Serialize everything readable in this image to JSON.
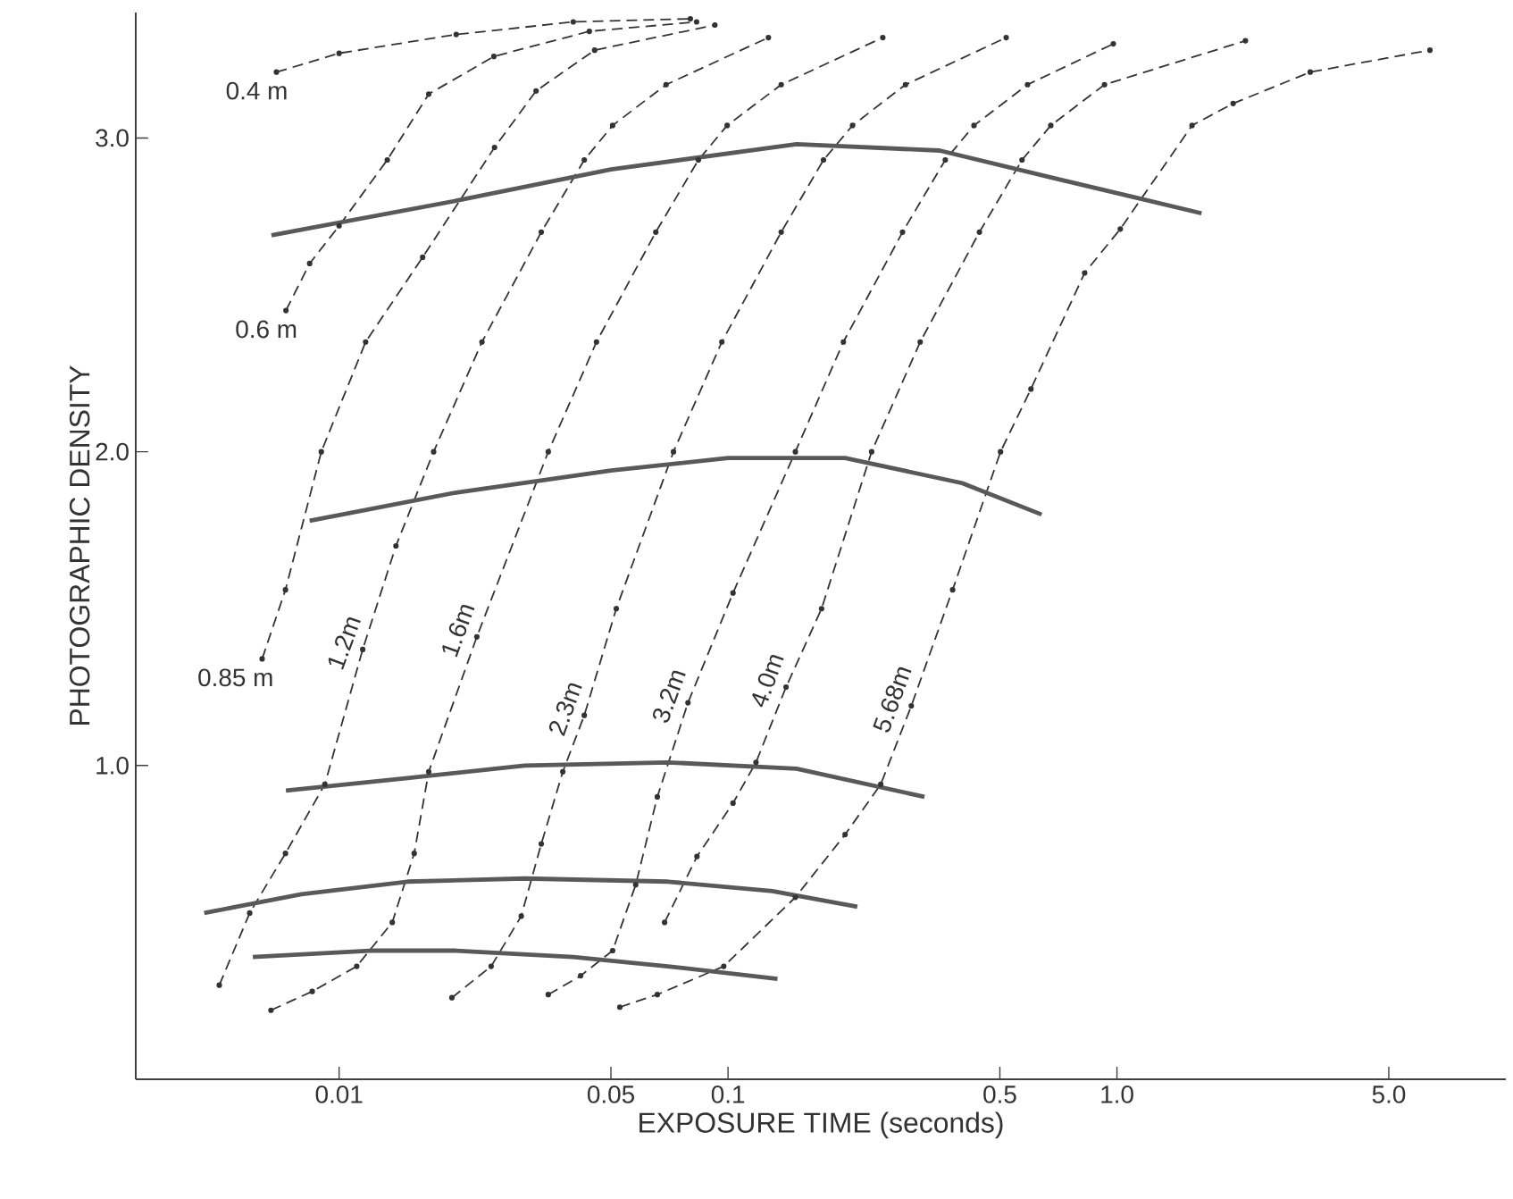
{
  "chart_data": {
    "type": "line",
    "xlabel": "EXPOSURE  TIME (seconds)",
    "ylabel": "PHOTOGRAPHIC DENSITY",
    "log": "x",
    "grid": false,
    "xlim": [
      0.003,
      10
    ],
    "ylim": [
      0,
      3.4
    ],
    "xticks": [
      0.01,
      0.05,
      0.1,
      0.5,
      {
        "value": 1,
        "label": "1.0"
      },
      {
        "value": 5,
        "label": "5.0"
      }
    ],
    "yticks": [
      {
        "value": 1,
        "label": "1.0"
      },
      {
        "value": 2,
        "label": "2.0"
      },
      {
        "value": 3,
        "label": "3.0"
      }
    ],
    "series": [
      {
        "name": "0.4 m",
        "color": "#333333",
        "line_style": "dashed",
        "marker": "circle",
        "x": [
          0.0069,
          0.01,
          0.02,
          0.04,
          0.08
        ],
        "values": [
          3.21,
          3.27,
          3.33,
          3.37,
          3.38
        ]
      },
      {
        "name": "0.6 m",
        "color": "#333333",
        "line_style": "dashed",
        "marker": "circle",
        "x": [
          0.0073,
          0.0084,
          0.01,
          0.0133,
          0.017,
          0.025,
          0.044,
          0.083
        ],
        "values": [
          2.45,
          2.6,
          2.72,
          2.93,
          3.14,
          3.26,
          3.34,
          3.37
        ]
      },
      {
        "name": "0.85 m",
        "color": "#333333",
        "line_style": "dashed",
        "marker": "circle",
        "x": [
          0.00634,
          0.00728,
          0.009,
          0.0117,
          0.0164,
          0.0251,
          0.0321,
          0.0454,
          0.0925
        ],
        "values": [
          1.34,
          1.56,
          2.0,
          2.35,
          2.62,
          2.97,
          3.15,
          3.28,
          3.36
        ]
      },
      {
        "name": "1.2m",
        "color": "#333333",
        "line_style": "dashed",
        "marker": "circle",
        "x": [
          0.00492,
          0.00589,
          0.00728,
          0.00919,
          0.0115,
          0.014,
          0.0175,
          0.0233,
          0.0331,
          0.0427,
          0.0505,
          0.0693,
          0.127
        ],
        "values": [
          0.3,
          0.53,
          0.72,
          0.94,
          1.37,
          1.7,
          2.0,
          2.35,
          2.7,
          2.93,
          3.04,
          3.17,
          3.32
        ]
      },
      {
        "name": "1.6m",
        "color": "#333333",
        "line_style": "dashed",
        "marker": "circle",
        "x": [
          0.00668,
          0.00853,
          0.0111,
          0.0137,
          0.0156,
          0.017,
          0.0226,
          0.0345,
          0.0459,
          0.0652,
          0.0839,
          0.0995,
          0.137,
          0.25
        ],
        "values": [
          0.22,
          0.28,
          0.36,
          0.5,
          0.72,
          0.98,
          1.41,
          2.0,
          2.35,
          2.7,
          2.93,
          3.04,
          3.17,
          3.32
        ]
      },
      {
        "name": "2.3m",
        "color": "#333333",
        "line_style": "dashed",
        "marker": "circle",
        "x": [
          0.0195,
          0.0246,
          0.0294,
          0.0331,
          0.0376,
          0.0427,
          0.0516,
          0.0724,
          0.0964,
          0.137,
          0.176,
          0.209,
          0.286,
          0.519
        ],
        "values": [
          0.26,
          0.36,
          0.52,
          0.75,
          0.98,
          1.16,
          1.5,
          2.0,
          2.35,
          2.7,
          2.93,
          3.04,
          3.17,
          3.32
        ]
      },
      {
        "name": "3.2m",
        "color": "#333333",
        "line_style": "dashed",
        "marker": "circle",
        "x": [
          0.0345,
          0.0418,
          0.0505,
          0.0579,
          0.0658,
          0.0789,
          0.103,
          0.149,
          0.198,
          0.281,
          0.362,
          0.429,
          0.589,
          0.979
        ],
        "values": [
          0.27,
          0.33,
          0.41,
          0.62,
          0.9,
          1.2,
          1.55,
          2.0,
          2.35,
          2.7,
          2.93,
          3.04,
          3.17,
          3.3
        ]
      },
      {
        "name": "4.0m",
        "color": "#333333",
        "line_style": "dashed",
        "marker": "circle",
        "x": [
          0.0687,
          0.0832,
          0.103,
          0.118,
          0.141,
          0.174,
          0.234,
          0.312,
          0.443,
          0.57,
          0.676,
          0.929,
          2.14
        ],
        "values": [
          0.5,
          0.71,
          0.88,
          1.01,
          1.25,
          1.5,
          2.0,
          2.35,
          2.7,
          2.93,
          3.04,
          3.17,
          3.31
        ]
      },
      {
        "name": "5.68m",
        "color": "#333333",
        "line_style": "dashed",
        "marker": "circle",
        "x": [
          0.0527,
          0.0658,
          0.0975,
          0.149,
          0.2,
          0.247,
          0.296,
          0.378,
          0.502,
          0.601,
          0.826,
          1.02,
          1.56,
          1.99,
          3.14,
          6.38
        ],
        "values": [
          0.23,
          0.27,
          0.36,
          0.58,
          0.78,
          0.94,
          1.19,
          1.56,
          2.0,
          2.2,
          2.57,
          2.71,
          3.04,
          3.11,
          3.21,
          3.28
        ]
      },
      {
        "color": "#595959",
        "line_style": "solid",
        "marker": "none",
        "x": [
          0.0067,
          0.02,
          0.05,
          0.15,
          0.35,
          0.7,
          1.65
        ],
        "values": [
          2.69,
          2.8,
          2.9,
          2.98,
          2.96,
          2.87,
          2.76
        ]
      },
      {
        "color": "#595959",
        "line_style": "solid",
        "marker": "none",
        "x": [
          0.0084,
          0.02,
          0.05,
          0.1,
          0.2,
          0.4,
          0.64
        ],
        "values": [
          1.78,
          1.87,
          1.94,
          1.98,
          1.98,
          1.9,
          1.8
        ]
      },
      {
        "color": "#595959",
        "line_style": "solid",
        "marker": "none",
        "x": [
          0.0073,
          0.015,
          0.03,
          0.07,
          0.15,
          0.32
        ],
        "values": [
          0.92,
          0.96,
          1.0,
          1.01,
          0.99,
          0.9
        ]
      },
      {
        "color": "#595959",
        "line_style": "solid",
        "marker": "none",
        "x": [
          0.0045,
          0.008,
          0.015,
          0.03,
          0.07,
          0.13,
          0.215
        ],
        "values": [
          0.53,
          0.59,
          0.63,
          0.64,
          0.63,
          0.6,
          0.55
        ]
      },
      {
        "color": "#595959",
        "line_style": "solid",
        "marker": "none",
        "x": [
          0.006,
          0.012,
          0.02,
          0.04,
          0.07,
          0.134
        ],
        "values": [
          0.39,
          0.41,
          0.41,
          0.39,
          0.36,
          0.32
        ]
      }
    ]
  }
}
